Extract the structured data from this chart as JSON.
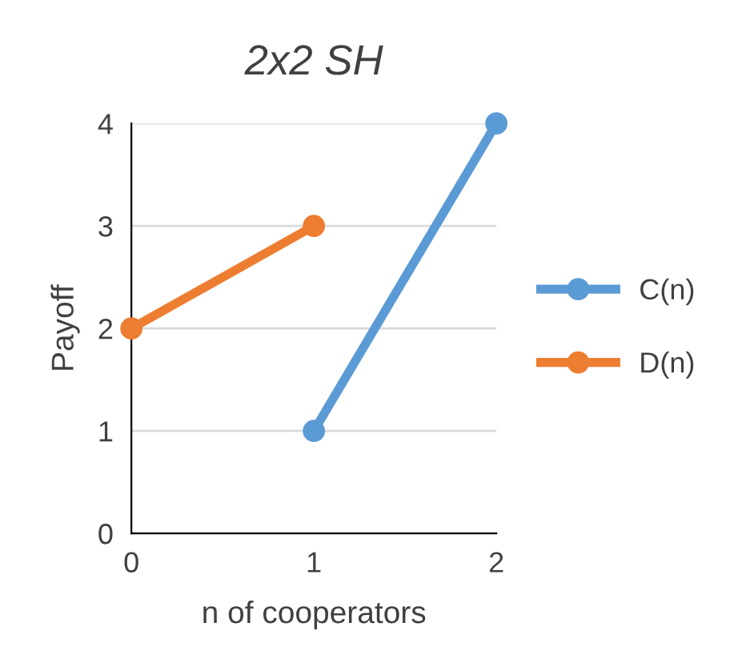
{
  "chart_data": {
    "type": "line",
    "title": "2x2 SH",
    "xlabel": "n of cooperators",
    "ylabel": "Payoff",
    "series": [
      {
        "name": "C(n)",
        "color": "#5b9bd5",
        "x": [
          1,
          2
        ],
        "values": [
          1,
          4
        ]
      },
      {
        "name": "D(n)",
        "color": "#ed7d31",
        "x": [
          0,
          1
        ],
        "values": [
          2,
          3
        ]
      }
    ],
    "xlim": [
      0,
      2
    ],
    "xticks": [
      0,
      1,
      2
    ],
    "ylim": [
      0,
      4
    ],
    "yticks": [
      0,
      1,
      2,
      3,
      4
    ],
    "grid": "y",
    "legend": "right",
    "marker": "circle",
    "line_style": "solid"
  }
}
